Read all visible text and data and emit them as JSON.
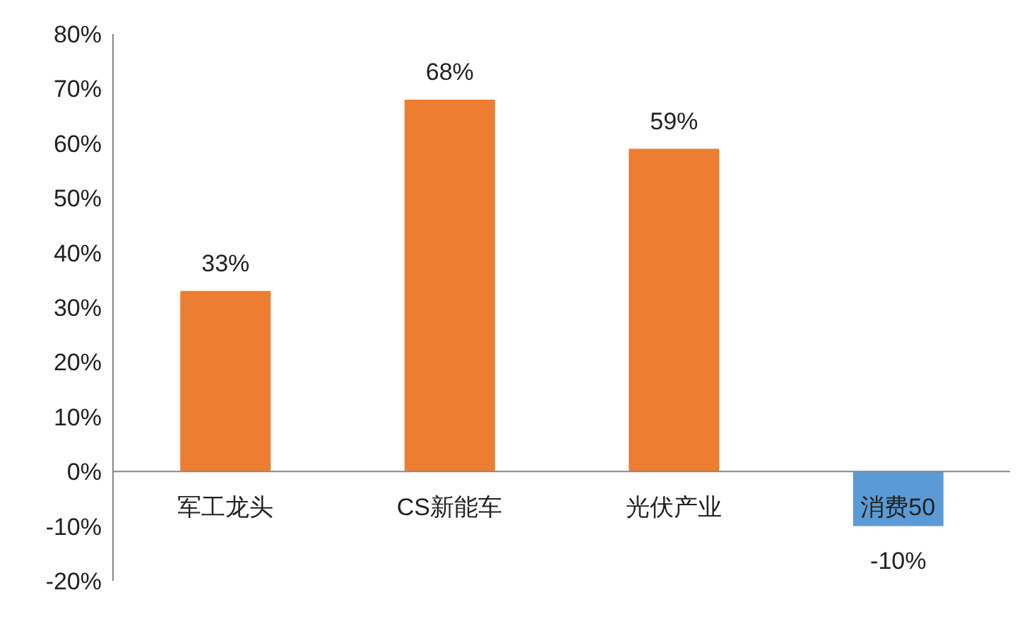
{
  "chart_data": {
    "type": "bar",
    "categories": [
      "军工龙头",
      "CS新能车",
      "光伏产业",
      "消费50"
    ],
    "values": [
      33,
      68,
      59,
      -10
    ],
    "colors": [
      "#ed7d31",
      "#ed7d31",
      "#ed7d31",
      "#5b9bd5"
    ],
    "value_labels": [
      "33%",
      "68%",
      "59%",
      "-10%"
    ],
    "ylim": [
      -20,
      80
    ],
    "yticks": [
      {
        "value": -20,
        "label": "-20%"
      },
      {
        "value": -10,
        "label": "-10%"
      },
      {
        "value": 0,
        "label": "0%"
      },
      {
        "value": 10,
        "label": "10%"
      },
      {
        "value": 20,
        "label": "20%"
      },
      {
        "value": 30,
        "label": "30%"
      },
      {
        "value": 40,
        "label": "40%"
      },
      {
        "value": 50,
        "label": "50%"
      },
      {
        "value": 60,
        "label": "60%"
      },
      {
        "value": 70,
        "label": "70%"
      },
      {
        "value": 80,
        "label": "80%"
      }
    ],
    "grid": false,
    "legend": false
  }
}
